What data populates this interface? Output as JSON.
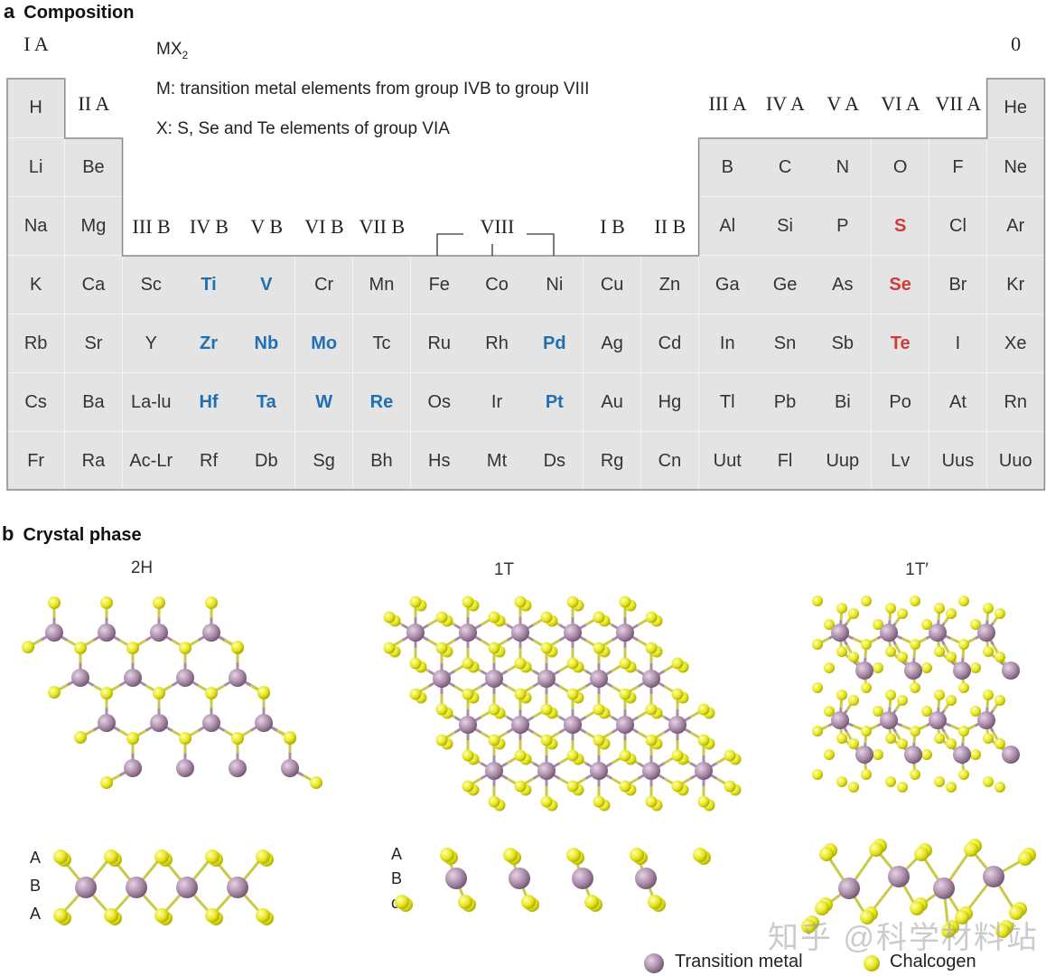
{
  "panel_a": {
    "letter": "a",
    "title": "Composition",
    "formula": "MX",
    "formula_sub": "2",
    "note_m": "M: transition metal elements from group IVB to group VIII",
    "note_x": "X: S, Se and Te elements of group VIA",
    "groups": {
      "IA": "I A",
      "IIA": "II A",
      "zero": "0",
      "IIIA": "III A",
      "IVA": "IV A",
      "VA": "V A",
      "VIA": "VI A",
      "VIIA": "VII A",
      "IIIB": "III B",
      "IVB": "IV B",
      "VB": "V B",
      "VIB": "VI B",
      "VIIB": "VII B",
      "VIII": "VIII",
      "IB": "I B",
      "IIB": "II B"
    },
    "rows": [
      [
        "H",
        "",
        "",
        "",
        "",
        "",
        "",
        "",
        "",
        "",
        "",
        "",
        "",
        "",
        "",
        "",
        "",
        "He"
      ],
      [
        "Li",
        "Be",
        "",
        "",
        "",
        "",
        "",
        "",
        "",
        "",
        "",
        "",
        "B",
        "C",
        "N",
        "O",
        "F",
        "Ne"
      ],
      [
        "Na",
        "Mg",
        "",
        "",
        "",
        "",
        "",
        "",
        "",
        "",
        "",
        "",
        "Al",
        "Si",
        "P",
        "S",
        "Cl",
        "Ar"
      ],
      [
        "K",
        "Ca",
        "Sc",
        "Ti",
        "V",
        "Cr",
        "Mn",
        "Fe",
        "Co",
        "Ni",
        "Cu",
        "Zn",
        "Ga",
        "Ge",
        "As",
        "Se",
        "Br",
        "Kr"
      ],
      [
        "Rb",
        "Sr",
        "Y",
        "Zr",
        "Nb",
        "Mo",
        "Tc",
        "Ru",
        "Rh",
        "Pd",
        "Ag",
        "Cd",
        "In",
        "Sn",
        "Sb",
        "Te",
        "I",
        "Xe"
      ],
      [
        "Cs",
        "Ba",
        "La-lu",
        "Hf",
        "Ta",
        "W",
        "Re",
        "Os",
        "Ir",
        "Pt",
        "Au",
        "Hg",
        "Tl",
        "Pb",
        "Bi",
        "Po",
        "At",
        "Rn"
      ],
      [
        "Fr",
        "Ra",
        "Ac-Lr",
        "Rf",
        "Db",
        "Sg",
        "Bh",
        "Hs",
        "Mt",
        "Ds",
        "Rg",
        "Cn",
        "Uut",
        "Fl",
        "Uup",
        "Lv",
        "Uus",
        "Uuo"
      ]
    ],
    "highlight_metals": [
      "Ti",
      "V",
      "Zr",
      "Nb",
      "Mo",
      "Pd",
      "Hf",
      "Ta",
      "W",
      "Re",
      "Pt"
    ],
    "highlight_chalcogens": [
      "S",
      "Se",
      "Te"
    ],
    "colors": {
      "metal_highlight": "#1f6fb5",
      "chalcogen_highlight": "#d03a3a",
      "cell_fill": "#e4e4e4"
    }
  },
  "panel_b": {
    "letter": "b",
    "title": "Crystal phase",
    "phases": [
      "2H",
      "1T",
      "1T′"
    ],
    "stacking": [
      [
        "A",
        "B",
        "A"
      ],
      [
        "A",
        "B",
        "C"
      ]
    ],
    "legend": {
      "metal": "Transition metal",
      "chalcogen": "Chalcogen"
    },
    "colors": {
      "metal": "#a98aa8",
      "chalcogen": "#e6e61e"
    }
  },
  "watermark": "知乎 @科学材料站"
}
